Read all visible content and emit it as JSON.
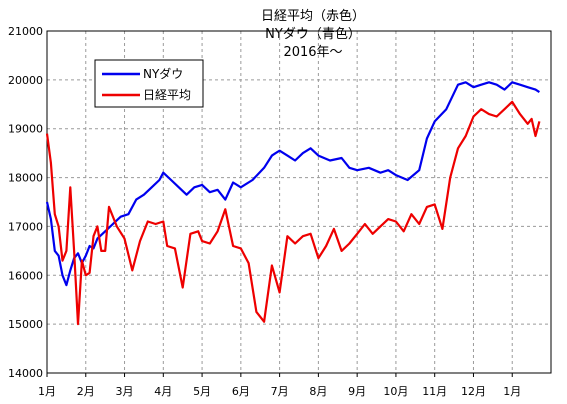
{
  "chart_data": {
    "type": "line",
    "title_lines": [
      "日経平均（赤色）",
      "NYダウ（青色）",
      "2016年〜"
    ],
    "ylim": [
      14000,
      21000
    ],
    "yticks": [
      "14000",
      "15000",
      "16000",
      "17000",
      "18000",
      "19000",
      "20000",
      "21000"
    ],
    "xtick_labels": [
      "1月",
      "2月",
      "3月",
      "4月",
      "5月",
      "6月",
      "7月",
      "8月",
      "9月",
      "10月",
      "11月",
      "12月",
      "1月"
    ],
    "grid": true,
    "legend_position": "top-left",
    "series": [
      {
        "name": "NYダウ",
        "color": "#0000ee",
        "x": [
          0.0,
          0.1,
          0.2,
          0.3,
          0.4,
          0.5,
          0.6,
          0.7,
          0.8,
          0.9,
          1.0,
          1.1,
          1.2,
          1.3,
          1.5,
          1.7,
          1.9,
          2.1,
          2.3,
          2.5,
          2.7,
          2.9,
          3.0,
          3.2,
          3.4,
          3.6,
          3.8,
          4.0,
          4.2,
          4.4,
          4.6,
          4.8,
          5.0,
          5.3,
          5.6,
          5.8,
          5.9,
          6.0,
          6.2,
          6.4,
          6.6,
          6.8,
          7.0,
          7.3,
          7.6,
          7.8,
          8.0,
          8.3,
          8.6,
          8.8,
          9.0,
          9.3,
          9.6,
          9.8,
          10.0,
          10.3,
          10.6,
          10.8,
          11.0,
          11.2,
          11.4,
          11.6,
          11.8,
          12.0,
          12.2,
          12.4,
          12.6,
          12.7
        ],
        "y": [
          17500,
          17150,
          16500,
          16400,
          16000,
          15800,
          16100,
          16350,
          16450,
          16250,
          16400,
          16600,
          16550,
          16750,
          16900,
          17050,
          17200,
          17250,
          17550,
          17650,
          17800,
          17950,
          18100,
          17950,
          17800,
          17650,
          17800,
          17850,
          17700,
          17750,
          17550,
          17900,
          17800,
          17950,
          18200,
          18450,
          18500,
          18550,
          18450,
          18350,
          18500,
          18600,
          18450,
          18350,
          18400,
          18200,
          18150,
          18200,
          18100,
          18150,
          18050,
          17950,
          18150,
          18800,
          19150,
          19400,
          19900,
          19950,
          19850,
          19900,
          19950,
          19900,
          19800,
          19950,
          19900,
          19850,
          19800,
          19750
        ]
      },
      {
        "name": "日経平均",
        "color": "#ee0000",
        "x": [
          0.0,
          0.1,
          0.2,
          0.3,
          0.4,
          0.5,
          0.6,
          0.7,
          0.8,
          0.9,
          1.0,
          1.1,
          1.2,
          1.3,
          1.4,
          1.5,
          1.6,
          1.8,
          2.0,
          2.2,
          2.4,
          2.6,
          2.8,
          3.0,
          3.1,
          3.3,
          3.5,
          3.7,
          3.9,
          4.0,
          4.2,
          4.4,
          4.6,
          4.8,
          5.0,
          5.2,
          5.4,
          5.6,
          5.8,
          6.0,
          6.2,
          6.4,
          6.6,
          6.8,
          7.0,
          7.2,
          7.4,
          7.6,
          7.8,
          8.0,
          8.2,
          8.4,
          8.6,
          8.8,
          9.0,
          9.2,
          9.4,
          9.6,
          9.8,
          10.0,
          10.2,
          10.4,
          10.6,
          10.8,
          11.0,
          11.2,
          11.4,
          11.6,
          11.8,
          12.0,
          12.2,
          12.4,
          12.5,
          12.6,
          12.7
        ],
        "y": [
          18900,
          18300,
          17250,
          17000,
          16300,
          16500,
          17800,
          16500,
          15000,
          16300,
          16000,
          16050,
          16800,
          17000,
          16500,
          16500,
          17400,
          17000,
          16750,
          16100,
          16700,
          17100,
          17050,
          17100,
          16600,
          16550,
          15750,
          16850,
          16900,
          16700,
          16650,
          16900,
          17350,
          16600,
          16550,
          16250,
          15250,
          15050,
          16200,
          15650,
          16800,
          16650,
          16800,
          16850,
          16350,
          16600,
          16950,
          16500,
          16650,
          16850,
          17050,
          16850,
          17000,
          17150,
          17100,
          16900,
          17250,
          17050,
          17400,
          17450,
          16950,
          18000,
          18600,
          18850,
          19250,
          19400,
          19300,
          19250,
          19400,
          19550,
          19300,
          19100,
          19200,
          18850,
          19150
        ]
      }
    ]
  }
}
